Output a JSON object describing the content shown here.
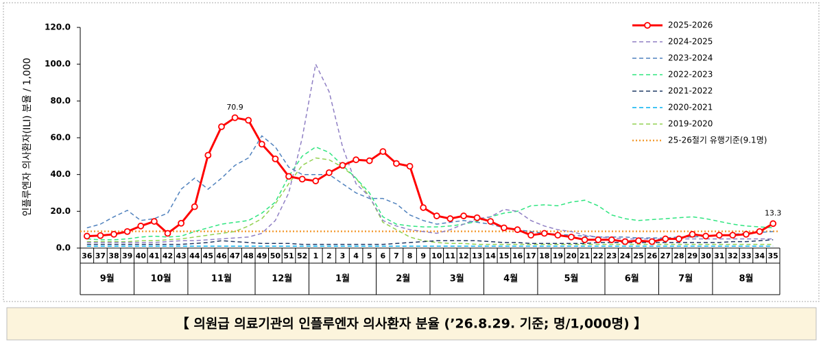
{
  "chart_data": {
    "type": "line",
    "y_label": "인플루엔자 의사환자(ILI) 분율 / 1,000",
    "caption": "【 의원급 의료기관의 인플루엔자 의사환자 분율 (’26.8.29. 기준; 명/1,000명) 】",
    "categories": [
      "36",
      "37",
      "38",
      "39",
      "40",
      "41",
      "42",
      "43",
      "44",
      "45",
      "46",
      "47",
      "48",
      "49",
      "50",
      "51",
      "52",
      "1",
      "2",
      "3",
      "4",
      "5",
      "6",
      "7",
      "8",
      "9",
      "10",
      "11",
      "12",
      "13",
      "14",
      "15",
      "16",
      "17",
      "18",
      "19",
      "20",
      "21",
      "22",
      "23",
      "24",
      "25",
      "26",
      "27",
      "28",
      "29",
      "30",
      "31",
      "32",
      "33",
      "34",
      "35"
    ],
    "months": [
      "9월",
      "9월",
      "9월",
      "9월",
      "10월",
      "10월",
      "10월",
      "10월",
      "11월",
      "11월",
      "11월",
      "11월",
      "11월",
      "12월",
      "12월",
      "12월",
      "12월",
      "1월",
      "1월",
      "1월",
      "1월",
      "1월",
      "2월",
      "2월",
      "2월",
      "2월",
      "3월",
      "3월",
      "3월",
      "3월",
      "4월",
      "4월",
      "4월",
      "4월",
      "5월",
      "5월",
      "5월",
      "5월",
      "5월",
      "6월",
      "6월",
      "6월",
      "6월",
      "7월",
      "7월",
      "7월",
      "7월",
      "8월",
      "8월",
      "8월",
      "8월",
      "8월"
    ],
    "ylim": [
      0,
      120
    ],
    "yticks": [
      {
        "value": 0,
        "label": "0.0"
      },
      {
        "value": 20,
        "label": "20.0"
      },
      {
        "value": 40,
        "label": "40.0"
      },
      {
        "value": 60,
        "label": "60.0"
      },
      {
        "value": 80,
        "label": "80.0"
      },
      {
        "value": 100,
        "label": "100.0"
      },
      {
        "value": 120,
        "label": "120.0"
      }
    ],
    "grid": false,
    "legend": "top-right",
    "series": [
      {
        "name": "2025-2026",
        "color": "#ff0000",
        "style": "solid",
        "marker": true,
        "values": [
          6.5,
          6.8,
          7.5,
          9.0,
          12.0,
          14.5,
          8.0,
          13.5,
          22.5,
          50.5,
          66.0,
          70.9,
          69.5,
          56.5,
          48.5,
          39.0,
          37.5,
          36.5,
          41.0,
          45.0,
          48.0,
          47.5,
          52.5,
          46.0,
          44.5,
          22.0,
          17.5,
          16.0,
          17.5,
          16.5,
          14.5,
          11.0,
          10.0,
          7.0,
          8.0,
          7.0,
          6.0,
          4.5,
          4.5,
          4.5,
          3.5,
          4.0,
          3.5,
          5.0,
          5.0,
          7.5,
          6.5,
          7.0,
          7.0,
          7.5,
          9.0,
          13.3
        ],
        "value_labels": [
          null,
          null,
          null,
          null,
          null,
          null,
          null,
          null,
          null,
          null,
          null,
          "70.9",
          null,
          null,
          null,
          null,
          null,
          null,
          null,
          null,
          null,
          null,
          null,
          null,
          null,
          null,
          null,
          null,
          null,
          null,
          null,
          null,
          null,
          null,
          null,
          null,
          null,
          null,
          null,
          null,
          null,
          null,
          null,
          null,
          null,
          null,
          null,
          null,
          null,
          null,
          null,
          "13.3"
        ]
      },
      {
        "name": "2024-2025",
        "color": "#8f7fc4",
        "style": "dashed",
        "marker": false,
        "values": [
          3,
          3,
          3,
          3,
          3,
          3,
          3.5,
          4,
          4,
          4.5,
          5,
          5.5,
          6,
          8,
          15,
          30,
          60,
          100,
          85,
          55,
          35,
          28,
          15,
          12,
          10,
          9,
          8,
          10,
          13,
          16,
          17,
          21,
          20,
          15,
          12,
          10,
          9,
          7,
          6,
          5.5,
          5,
          5,
          5,
          5,
          5,
          5,
          5,
          5,
          5,
          5,
          5,
          5
        ]
      },
      {
        "name": "2023-2024",
        "color": "#4f81bd",
        "style": "dashed",
        "marker": false,
        "values": [
          11,
          13,
          17,
          20.5,
          15,
          16,
          19,
          32,
          38,
          32,
          38,
          45,
          49,
          61,
          55,
          44,
          40,
          40,
          40,
          35,
          30,
          27,
          27,
          24,
          18,
          15,
          13,
          14,
          15,
          14,
          13,
          11,
          10,
          9,
          8,
          7.5,
          7,
          6.5,
          6,
          6,
          6,
          5.5,
          5.5,
          5.5,
          6,
          6,
          6.5,
          7,
          7.5,
          8,
          8.5,
          9
        ]
      },
      {
        "name": "2022-2023",
        "color": "#2ee57f",
        "style": "dashed",
        "marker": false,
        "values": [
          5,
          4.5,
          4.5,
          5,
          6,
          6.5,
          6,
          6.5,
          9,
          11,
          13,
          14,
          15,
          19,
          25,
          39,
          50,
          55,
          52,
          45,
          38,
          30,
          17,
          13,
          12,
          11.5,
          11.5,
          12,
          13,
          14.5,
          17,
          19,
          20,
          23,
          23.5,
          23,
          25,
          26,
          23,
          18,
          16,
          15,
          15.5,
          16,
          16.5,
          17,
          16,
          14.5,
          13,
          12,
          11.5,
          11
        ]
      },
      {
        "name": "2021-2022",
        "color": "#1f3864",
        "style": "dashed",
        "marker": false,
        "values": [
          2,
          2,
          2,
          2,
          2,
          2,
          2,
          2,
          2.5,
          3,
          4,
          3.5,
          3,
          2.5,
          2.5,
          2.5,
          2,
          2,
          2,
          2,
          2,
          2,
          2,
          2.5,
          3,
          3.5,
          4,
          4,
          4,
          4,
          3.5,
          3,
          3,
          2.5,
          2.5,
          2.5,
          2.5,
          2.5,
          3,
          3,
          3,
          3,
          3,
          3,
          3,
          3,
          3,
          3,
          3.5,
          3.5,
          4,
          4.5
        ]
      },
      {
        "name": "2020-2021",
        "color": "#00b0f0",
        "style": "dashed",
        "marker": false,
        "values": [
          1,
          1,
          1,
          1,
          1,
          1,
          1,
          1,
          1,
          1,
          1,
          1,
          1,
          1,
          1,
          1,
          1,
          1,
          1,
          1,
          1,
          1,
          1,
          1,
          1,
          1,
          1,
          1,
          1,
          1,
          1,
          1,
          1,
          1,
          1,
          1,
          1,
          1,
          1,
          1,
          1,
          1,
          1,
          1,
          1,
          1,
          1,
          1,
          1,
          1,
          1,
          1
        ]
      },
      {
        "name": "2019-2020",
        "color": "#92d050",
        "style": "dashed",
        "marker": false,
        "values": [
          3.5,
          3.5,
          3.5,
          3.5,
          4,
          4,
          4.5,
          5,
          6,
          7,
          8,
          9,
          12,
          16,
          24,
          35,
          45,
          49,
          48,
          44,
          38,
          28,
          14,
          10,
          6,
          4,
          3,
          2.5,
          2.5,
          2,
          2,
          2,
          2,
          2,
          2,
          2,
          2,
          2,
          2,
          2,
          2,
          2,
          2,
          2,
          2,
          2,
          2,
          2,
          2,
          2,
          2,
          2
        ]
      }
    ],
    "threshold": {
      "name": "25-26절기 유행기준(9.1명)",
      "value": 9.1,
      "color": "#f39c34"
    }
  }
}
